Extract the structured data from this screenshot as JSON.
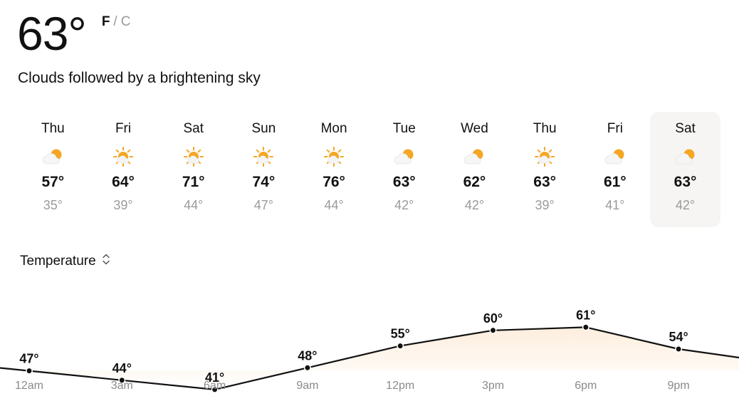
{
  "current": {
    "temperature": "63°",
    "unit_f": "F",
    "unit_separator": "/",
    "unit_c": "C",
    "condition": "Clouds followed by a brightening sky"
  },
  "forecast": [
    {
      "day": "Thu",
      "high": "57°",
      "low": "35°",
      "icon": "partly-cloudy-icon"
    },
    {
      "day": "Fri",
      "high": "64°",
      "low": "39°",
      "icon": "mostly-sunny-icon"
    },
    {
      "day": "Sat",
      "high": "71°",
      "low": "44°",
      "icon": "mostly-sunny-icon"
    },
    {
      "day": "Sun",
      "high": "74°",
      "low": "47°",
      "icon": "mostly-sunny-icon"
    },
    {
      "day": "Mon",
      "high": "76°",
      "low": "44°",
      "icon": "mostly-sunny-icon"
    },
    {
      "day": "Tue",
      "high": "63°",
      "low": "42°",
      "icon": "partly-cloudy-icon"
    },
    {
      "day": "Wed",
      "high": "62°",
      "low": "42°",
      "icon": "partly-cloudy-icon"
    },
    {
      "day": "Thu",
      "high": "63°",
      "low": "39°",
      "icon": "mostly-sunny-icon"
    },
    {
      "day": "Fri",
      "high": "61°",
      "low": "41°",
      "icon": "partly-cloudy-icon"
    },
    {
      "day": "Sat",
      "high": "63°",
      "low": "42°",
      "icon": "partly-cloudy-icon",
      "selected": true
    }
  ],
  "metric_selector": {
    "label": "Temperature",
    "icon": "chevron-up-down-icon"
  },
  "colors": {
    "sun": "#f5a623",
    "cloud": "#f1f1f1",
    "area_fill": "#fdf0e4",
    "line": "#111111"
  },
  "chart_data": {
    "type": "area",
    "categories": [
      "12am",
      "3am",
      "6am",
      "9am",
      "12pm",
      "3pm",
      "6pm",
      "9pm"
    ],
    "values": [
      47,
      44,
      41,
      48,
      55,
      60,
      61,
      54
    ],
    "value_labels": [
      "47°",
      "44°",
      "41°",
      "48°",
      "55°",
      "60°",
      "61°",
      "54°"
    ],
    "ylim": [
      30,
      70
    ],
    "grid": false
  }
}
